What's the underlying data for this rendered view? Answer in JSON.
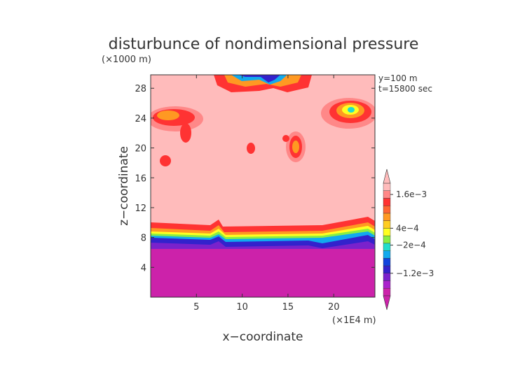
{
  "chart_data": {
    "type": "heatmap",
    "title": "disturbunce of nondimensional pressure",
    "xlabel": "x−coordinate",
    "ylabel": "z−coordinate",
    "x_unit": "(×1E4 m)",
    "y_unit": "(×1000 m)",
    "annotations": [
      "y=100 m",
      "t=15800 sec"
    ],
    "xlim": [
      0,
      24.5
    ],
    "ylim": [
      0,
      29.8
    ],
    "xticks": [
      5,
      10,
      15,
      20
    ],
    "yticks": [
      4,
      8,
      12,
      16,
      20,
      24,
      28
    ],
    "grid": false,
    "colorbar": {
      "ticks": [
        {
          "label": "1.6e−3",
          "value": 0.0016
        },
        {
          "label": "4e−4",
          "value": 0.0004
        },
        {
          "label": "−2e−4",
          "value": -0.0002
        },
        {
          "label": "−1.2e−3",
          "value": -0.0012
        }
      ],
      "colors_low_to_high": [
        "#cc22aa",
        "#aa22cc",
        "#7a22cc",
        "#3322cc",
        "#1144dd",
        "#11aaee",
        "#22ddcc",
        "#88ee44",
        "#ffff22",
        "#ffcc22",
        "#ff9922",
        "#ff6633",
        "#ff3333",
        "#ff8888",
        "#ffbbbb"
      ]
    },
    "regions": [
      {
        "level": "negative (≈ −1.6e−3)",
        "z_range": [
          0,
          7.5
        ],
        "color": "#cc22aa"
      },
      {
        "level": "transition (−1.2e−3 to 4e−4)",
        "z_range": [
          7.5,
          10
        ],
        "color": "#3322cc"
      },
      {
        "level": "positive (≈ 1.6e−3)",
        "z_range": [
          10,
          29.8
        ],
        "color": "#ffbbbb"
      }
    ],
    "colors": {
      "high": "#ffbbbb",
      "mid": "#ff3333",
      "low": "#cc22aa"
    }
  }
}
